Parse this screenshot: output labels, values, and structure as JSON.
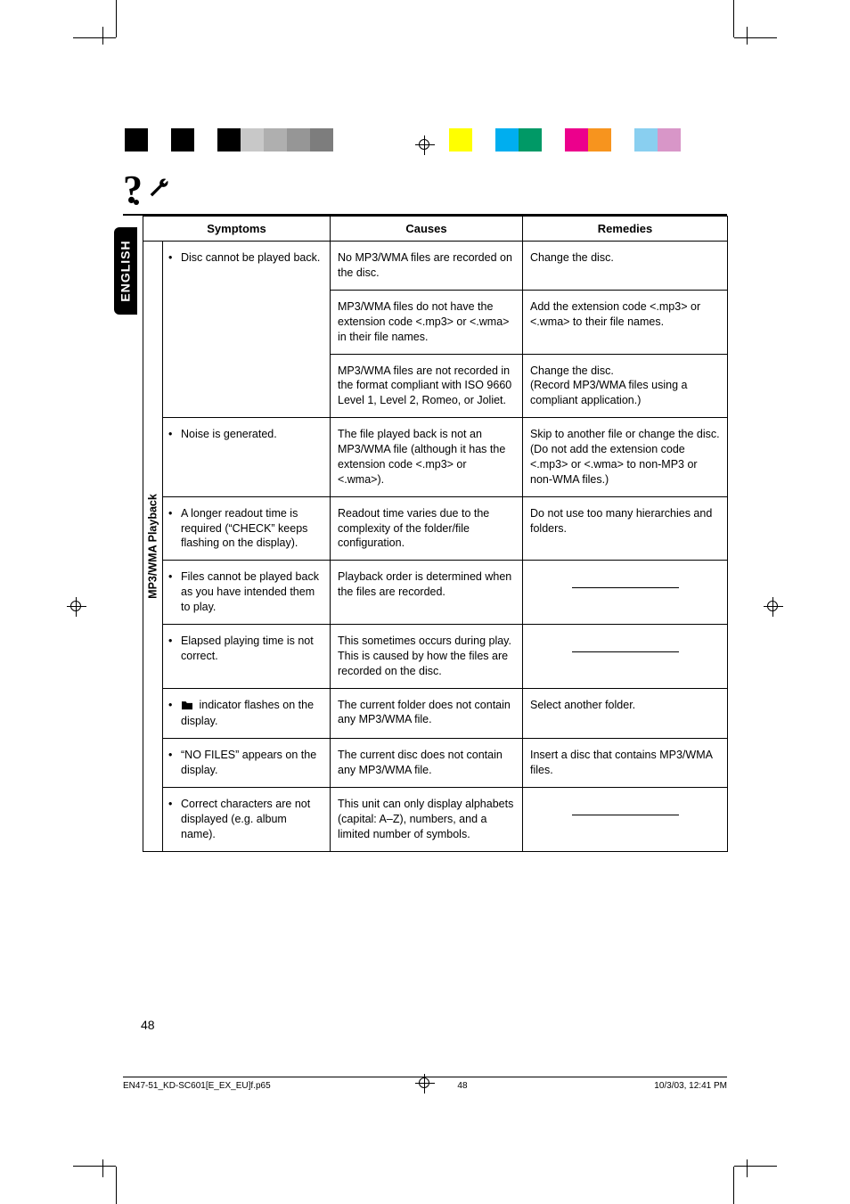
{
  "language_tab": "ENGLISH",
  "category_label": "MP3/WMA Playback",
  "headers": {
    "symptoms": "Symptoms",
    "causes": "Causes",
    "remedies": "Remedies"
  },
  "rows": [
    {
      "symptom": "Disc cannot be played back.",
      "cause": "No MP3/WMA files are recorded on the disc.",
      "remedy": "Change the disc."
    },
    {
      "symptom": "",
      "cause": "MP3/WMA files do not have the extension code <.mp3> or <.wma> in their file names.",
      "remedy": "Add the extension code <.mp3> or <.wma> to their file names."
    },
    {
      "symptom": "",
      "cause": "MP3/WMA files are not recorded in the format compliant with ISO 9660 Level 1, Level 2, Romeo, or Joliet.",
      "remedy": "Change the disc.\n(Record MP3/WMA files using a compliant application.)"
    },
    {
      "symptom": "Noise is generated.",
      "cause": "The file played back is not an MP3/WMA file (although it has the extension code <.mp3> or <.wma>).",
      "remedy": "Skip to another file or change the disc. (Do not add the extension code <.mp3> or <.wma> to non-MP3 or non-WMA files.)"
    },
    {
      "symptom": "A longer readout time is required (“CHECK” keeps flashing on the display).",
      "cause": "Readout time varies due to the complexity of the folder/file configuration.",
      "remedy": "Do not use too many hierarchies and folders."
    },
    {
      "symptom": "Files cannot be played back as you have intended them to play.",
      "cause": "Playback order is determined when the files are recorded.",
      "remedy": "DASH"
    },
    {
      "symptom": "Elapsed playing time is not correct.",
      "cause": "This sometimes occurs during play. This is caused by how the files are recorded on the disc.",
      "remedy": "DASH"
    },
    {
      "symptom": "FOLDER_ICON indicator flashes on the display.",
      "cause": "The current folder does not contain any MP3/WMA file.",
      "remedy": "Select another folder."
    },
    {
      "symptom": "“NO FILES” appears on the display.",
      "cause": "The current disc does not contain any MP3/WMA file.",
      "remedy": "Insert a disc that contains MP3/WMA files."
    },
    {
      "symptom": "Correct characters are not displayed (e.g. album name).",
      "cause": "This unit can only display alphabets (capital: A–Z), numbers, and a limited number of symbols.",
      "remedy": "DASH"
    }
  ],
  "page_number": "48",
  "footer": {
    "file": "EN47-51_KD-SC601[E_EX_EU]f.p65",
    "page": "48",
    "date": "10/3/03, 12:41 PM"
  },
  "colorbar_left": [
    "#000000",
    "#ffffff",
    "#000000",
    "#ffffff",
    "#000000",
    "#c8c8c8",
    "#afafaf",
    "#969696",
    "#7d7d7d",
    "#ffffff"
  ],
  "colorbar_right": [
    "#ffff00",
    "#ffffff",
    "#00aeef",
    "#009966",
    "#ffffff",
    "#ec008c",
    "#f7941e",
    "#ffffff",
    "#89cff0",
    "#d896c8"
  ],
  "col_widths": {
    "cat": "22px",
    "symptoms": "188px",
    "causes": "216px",
    "remedies": "230px"
  },
  "font": {
    "body_size": "12.5px",
    "header_size": "13px"
  }
}
